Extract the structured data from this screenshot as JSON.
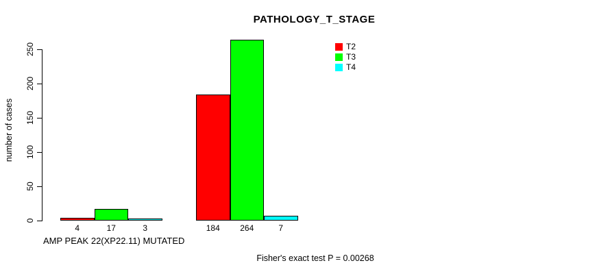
{
  "chart_data": {
    "type": "bar",
    "title": "PATHOLOGY_T_STAGE",
    "ylabel": "number of cases",
    "xlabel": "AMP PEAK 22(XP22.11) MUTATED",
    "footnote": "Fisher's exact test P = 0.00268",
    "yticks": [
      0,
      50,
      100,
      150,
      200,
      250
    ],
    "ylim": [
      0,
      275
    ],
    "grid": false,
    "legend_position": "top-right",
    "bar_border_color": "#000000",
    "categories": [
      "AMP PEAK 22(XP22.11) MUTATED",
      ""
    ],
    "series": [
      {
        "name": "T2",
        "color": "#ff0000",
        "values": [
          4,
          184
        ]
      },
      {
        "name": "T3",
        "color": "#00ff00",
        "values": [
          17,
          264
        ]
      },
      {
        "name": "T4",
        "color": "#00ffff",
        "values": [
          3,
          7
        ]
      }
    ]
  }
}
